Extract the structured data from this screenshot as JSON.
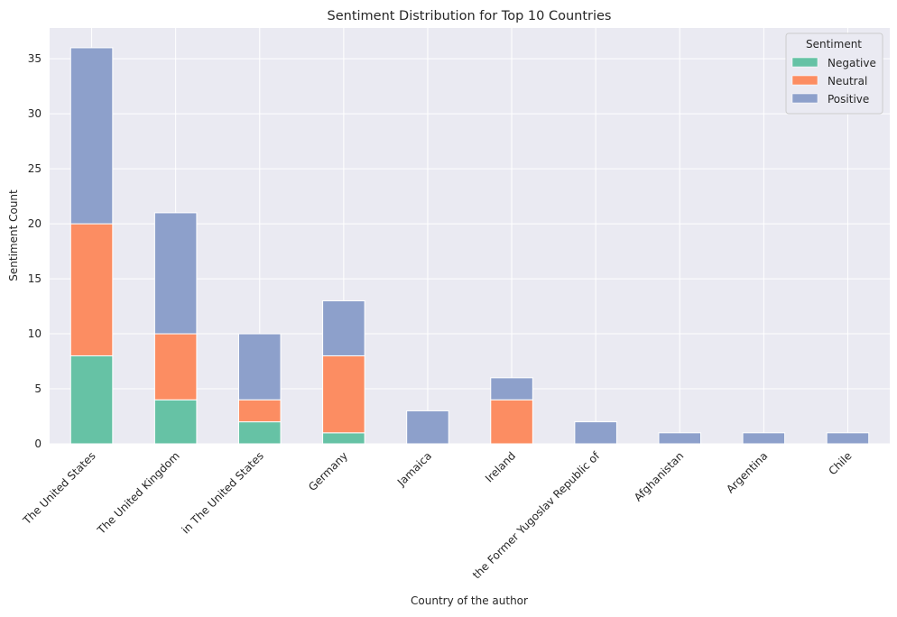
{
  "chart_data": {
    "type": "bar",
    "stacked": true,
    "title": "Sentiment Distribution for Top 10 Countries",
    "xlabel": "Country of the author",
    "ylabel": "Sentiment Count",
    "ylim": [
      0,
      37.8
    ],
    "yticks": [
      0,
      5,
      10,
      15,
      20,
      25,
      30,
      35
    ],
    "grid": true,
    "legend": {
      "title": "Sentiment",
      "placement": "top-right"
    },
    "categories": [
      "The United States",
      "The United Kingdom",
      "in The United States",
      "Germany",
      "Jamaica",
      "Ireland",
      "the Former Yugoslav Republic of",
      "Afghanistan",
      "Argentina",
      "Chile"
    ],
    "series": [
      {
        "name": "Negative",
        "color": "#66c2a5",
        "values": [
          8,
          4,
          2,
          1,
          0,
          0,
          0,
          0,
          0,
          0
        ]
      },
      {
        "name": "Neutral",
        "color": "#fc8d62",
        "values": [
          12,
          6,
          2,
          7,
          0,
          4,
          0,
          0,
          0,
          0
        ]
      },
      {
        "name": "Positive",
        "color": "#8da0cb",
        "values": [
          16,
          11,
          6,
          5,
          3,
          2,
          2,
          1,
          1,
          1
        ]
      }
    ]
  }
}
